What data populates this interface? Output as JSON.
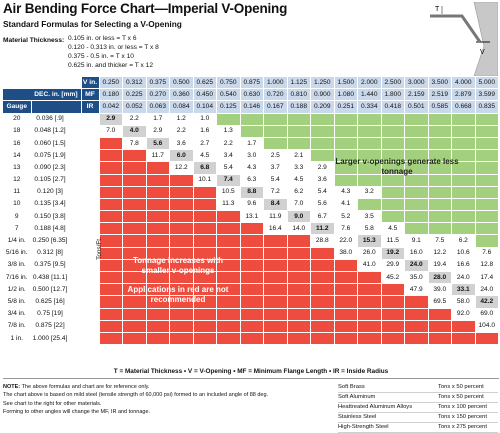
{
  "title": "Air Bending Force Chart—Imperial V-Opening",
  "subtitle": "Standard Formulas for Selecting a V-Opening",
  "material_thickness": {
    "label": "Material Thickness:",
    "lines": [
      "0.105 in. or less = T x 6",
      "0.120 - 0.313 in. or less = T x 8",
      "0.375 - 0.5 in. = T x 10",
      "0.625 in. and thicker = T x 12"
    ]
  },
  "diagram_labels": {
    "t": "T",
    "v": "V"
  },
  "header": {
    "v_label": "V in.",
    "mf_label": "MF",
    "ir_label": "IR",
    "gauge_label": "Gauge",
    "dec_label": "DEC. in. [mm]",
    "v": [
      "0.250",
      "0.312",
      "0.375",
      "0.500",
      "0.625",
      "0.750",
      "0.875",
      "1.000",
      "1.125",
      "1.250",
      "1.500",
      "2.000",
      "2.500",
      "3.000",
      "3.500",
      "4.000",
      "5.000"
    ],
    "mf": [
      "0.180",
      "0.225",
      "0.270",
      "0.360",
      "0.450",
      "0.540",
      "0.630",
      "0.720",
      "0.810",
      "0.900",
      "1.080",
      "1.440",
      "1.800",
      "2.159",
      "2.519",
      "2.879",
      "3.599"
    ],
    "ir": [
      "0.042",
      "0.052",
      "0.063",
      "0.084",
      "0.104",
      "0.125",
      "0.146",
      "0.167",
      "0.188",
      "0.209",
      "0.251",
      "0.334",
      "0.418",
      "0.501",
      "0.585",
      "0.668",
      "0.835"
    ]
  },
  "tons_label": "Tons/Ft.",
  "rows": [
    {
      "gauge": "20",
      "dec": "0.036 [.9]",
      "values": [
        "2.9",
        "2.2",
        "1.7",
        "1.2",
        "1.0",
        "",
        "",
        "",
        "",
        "",
        "",
        "",
        "",
        "",
        "",
        "",
        ""
      ]
    },
    {
      "gauge": "18",
      "dec": "0.048 [1.2]",
      "values": [
        "7.0",
        "4.0",
        "2.9",
        "2.2",
        "1.6",
        "1.3",
        "",
        "",
        "",
        "",
        "",
        "",
        "",
        "",
        "",
        "",
        ""
      ]
    },
    {
      "gauge": "16",
      "dec": "0.060 [1.5]",
      "values": [
        "",
        "7.8",
        "5.6",
        "3.6",
        "2.7",
        "2.2",
        "1.7",
        "",
        "",
        "",
        "",
        "",
        "",
        "",
        "",
        "",
        ""
      ]
    },
    {
      "gauge": "14",
      "dec": "0.075 [1.9]",
      "values": [
        "",
        "",
        "11.7",
        "6.0",
        "4.5",
        "3.4",
        "3.0",
        "2.5",
        "2.1",
        "",
        "",
        "",
        "",
        "",
        "",
        "",
        ""
      ]
    },
    {
      "gauge": "13",
      "dec": "0.090 [2.3]",
      "values": [
        "",
        "",
        "",
        "12.2",
        "6.8",
        "5.4",
        "4.3",
        "3.7",
        "3.3",
        "2.9",
        "",
        "",
        "",
        "",
        "",
        "",
        ""
      ]
    },
    {
      "gauge": "12",
      "dec": "0.105 [2.7]",
      "values": [
        "",
        "",
        "",
        "",
        "10.1",
        "7.4",
        "6.3",
        "5.4",
        "4.5",
        "3.6",
        "",
        "",
        "",
        "",
        "",
        "",
        ""
      ]
    },
    {
      "gauge": "11",
      "dec": "0.120 [3]",
      "values": [
        "",
        "",
        "",
        "",
        "",
        "10.5",
        "8.8",
        "7.2",
        "6.2",
        "5.4",
        "4.3",
        "3.2",
        "",
        "",
        "",
        "",
        ""
      ]
    },
    {
      "gauge": "10",
      "dec": "0.135 [3.4]",
      "values": [
        "",
        "",
        "",
        "",
        "",
        "11.3",
        "9.6",
        "8.4",
        "7.0",
        "5.6",
        "4.1",
        "",
        "",
        "",
        "",
        "",
        ""
      ]
    },
    {
      "gauge": "9",
      "dec": "0.150 [3.8]",
      "values": [
        "",
        "",
        "",
        "",
        "",
        "",
        "13.1",
        "11.9",
        "9.0",
        "6.7",
        "5.2",
        "3.5",
        "",
        "",
        "",
        "",
        ""
      ]
    },
    {
      "gauge": "7",
      "dec": "0.188 [4.8]",
      "values": [
        "",
        "",
        "",
        "",
        "",
        "",
        "",
        "16.4",
        "14.0",
        "11.2",
        "7.6",
        "5.8",
        "4.5",
        "",
        "",
        "",
        ""
      ]
    },
    {
      "gauge": "1/4 in.",
      "dec": "0.250 [6.35]",
      "values": [
        "",
        "",
        "",
        "",
        "",
        "",
        "",
        "",
        "",
        "28.8",
        "22.0",
        "15.3",
        "11.5",
        "9.1",
        "7.5",
        "6.2",
        ""
      ]
    },
    {
      "gauge": "5/16 in.",
      "dec": "0.312 [8]",
      "values": [
        "",
        "",
        "",
        "",
        "",
        "",
        "",
        "",
        "",
        "",
        "38.0",
        "26.0",
        "19.2",
        "16.0",
        "12.2",
        "10.6",
        "7.6"
      ]
    },
    {
      "gauge": "3/8 in.",
      "dec": "0.375 [9.5]",
      "values": [
        "",
        "",
        "",
        "",
        "",
        "",
        "",
        "",
        "",
        "",
        "",
        "41.0",
        "29.9",
        "24.0",
        "19.4",
        "16.6",
        "12.8"
      ]
    },
    {
      "gauge": "7/16 in.",
      "dec": "0.438 [11.1]",
      "values": [
        "",
        "",
        "",
        "",
        "",
        "",
        "",
        "",
        "",
        "",
        "",
        "",
        "45.2",
        "35.0",
        "28.0",
        "24.0",
        "17.4"
      ]
    },
    {
      "gauge": "1/2 in.",
      "dec": "0.500 [12.7]",
      "values": [
        "",
        "",
        "",
        "",
        "",
        "",
        "",
        "",
        "",
        "",
        "",
        "",
        "",
        "47.9",
        "39.0",
        "33.1",
        "24.0"
      ]
    },
    {
      "gauge": "5/8 in.",
      "dec": "0.625 [16]",
      "values": [
        "",
        "",
        "",
        "",
        "",
        "",
        "",
        "",
        "",
        "",
        "",
        "",
        "",
        "",
        "69.5",
        "58.0",
        "42.2"
      ]
    },
    {
      "gauge": "3/4 in.",
      "dec": "0.75 [19]",
      "values": [
        "",
        "",
        "",
        "",
        "",
        "",
        "",
        "",
        "",
        "",
        "",
        "",
        "",
        "",
        "",
        "92.0",
        "69.0"
      ]
    },
    {
      "gauge": "7/8 in.",
      "dec": "0.875 [22]",
      "values": [
        "",
        "",
        "",
        "",
        "",
        "",
        "",
        "",
        "",
        "",
        "",
        "",
        "",
        "",
        "",
        "",
        "104.0"
      ]
    },
    {
      "gauge": "1 in.",
      "dec": "1.000 [25.4]",
      "values": [
        "",
        "",
        "",
        "",
        "",
        "",
        "",
        "",
        "",
        "",
        "",
        "",
        "",
        "",
        "",
        "",
        ""
      ]
    }
  ],
  "annotations": {
    "green": "Larger v-openings generate less tonnage",
    "red_1": "Tonnage increases with smaller v-openings",
    "red_2": "Applications in red are not recommended"
  },
  "legend": "T = Material Thickness • V = V-Opening • MF = Minimum Flange Length • IR = Inside Radius",
  "notes": {
    "label": "NOTE:",
    "lines": [
      "The above formulas and chart are for reference only.",
      "The chart above is based on mild steel (tensile strength of 60,000 psi) formed to an included angle of 88 deg.",
      "See chart to the right for other materials.",
      "Forming to other angles will change the MF, IR and tonnage."
    ]
  },
  "materials": [
    {
      "name": "Soft Brass",
      "factor": "Tons x 50 percent"
    },
    {
      "name": "Soft Aluminum",
      "factor": "Tons x 50 percent"
    },
    {
      "name": "Heattreated Aluminum Alloys",
      "factor": "Tons x 100 percent"
    },
    {
      "name": "Stainless Steel",
      "factor": "Tons x 150 percent"
    },
    {
      "name": "High-Strength Steel",
      "factor": "Tons x 275 percent"
    }
  ],
  "colors": {
    "header_blue": "#1f4e87",
    "header_light": "#c9d8ea",
    "red_zone": "#ee4c3e",
    "green_zone": "#a3d07f",
    "highlight": "#d1d1d1"
  }
}
